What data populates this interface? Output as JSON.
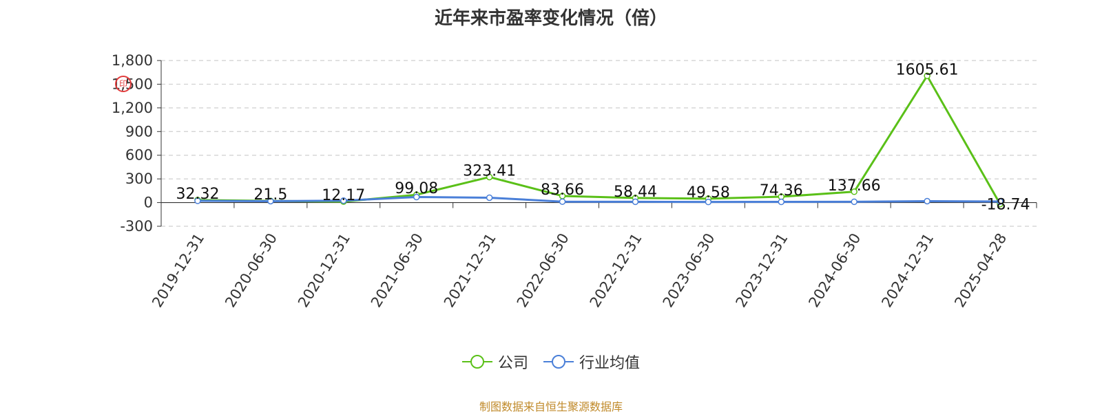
{
  "title": "近年来市盈率变化情况（倍）",
  "source_note": "制图数据来自恒生聚源数据库",
  "colors": {
    "company": "#5ac018",
    "industry": "#4a7fd8",
    "grid": "#cfcfcf",
    "axis": "#333333",
    "source": "#c08a2a"
  },
  "chart_data": {
    "type": "line",
    "title": "近年来市盈率变化情况（倍）",
    "categories": [
      "2019-12-31",
      "2020-06-30",
      "2020-12-31",
      "2021-06-30",
      "2021-12-31",
      "2022-06-30",
      "2022-12-31",
      "2023-06-30",
      "2023-12-31",
      "2024-06-30",
      "2024-12-31",
      "2025-04-28"
    ],
    "series": [
      {
        "name": "公司",
        "values": [
          32.32,
          21.5,
          12.17,
          99.08,
          323.41,
          83.66,
          58.44,
          49.58,
          74.36,
          137.66,
          1605.61,
          -18.74
        ],
        "labels": [
          "32.32",
          "21.5",
          "12.17",
          "99.08",
          "323.41",
          "83.66",
          "58.44",
          "49.58",
          "74.36",
          "137.66",
          "1605.61",
          "-18.74"
        ]
      },
      {
        "name": "行业均值",
        "values": [
          22,
          18,
          25,
          70,
          62,
          12,
          10,
          8,
          9,
          10,
          18,
          14
        ]
      }
    ],
    "yticks": [
      -300,
      0,
      300,
      600,
      900,
      1200,
      1500,
      1800
    ],
    "ytick_labels": [
      "-300",
      "0",
      "300",
      "600",
      "900",
      "1,200",
      "1,500",
      "1,800"
    ],
    "ylim": [
      -300,
      1800
    ],
    "grid": true,
    "legend_position": "bottom-center"
  }
}
